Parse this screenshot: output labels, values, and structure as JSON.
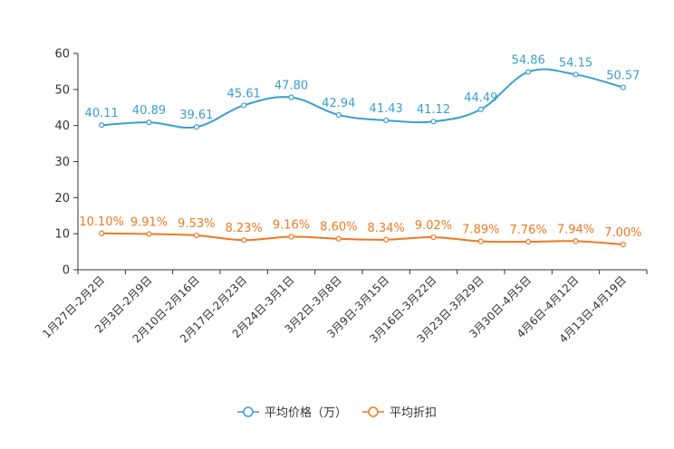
{
  "chart_data": {
    "type": "line",
    "categories": [
      "1月27日-2月2日",
      "2月3日-2月9日",
      "2月10日-2月16日",
      "2月17日-2月23日",
      "2月24日-3月1日",
      "3月2日-3月8日",
      "3月9日-3月15日",
      "3月16日-3月22日",
      "3月23日-3月29日",
      "3月30日-4月5日",
      "4月6日-4月12日",
      "4月13日-4月19日"
    ],
    "ylim": [
      0,
      60
    ],
    "yticks": [
      "0",
      "10",
      "20",
      "30",
      "40",
      "50",
      "60"
    ],
    "smooth": true,
    "series": [
      {
        "name": "平均价格（万）",
        "color": "#3a9fd0",
        "values": [
          40.11,
          40.89,
          39.61,
          45.61,
          47.8,
          42.94,
          41.43,
          41.12,
          44.49,
          54.86,
          54.15,
          50.57
        ],
        "labels": [
          "40.11",
          "40.89",
          "39.61",
          "45.61",
          "47.80",
          "42.94",
          "41.43",
          "41.12",
          "44.49",
          "54.86",
          "54.15",
          "50.57"
        ]
      },
      {
        "name": "平均折扣",
        "color": "#f0781e",
        "values": [
          10.1,
          9.91,
          9.53,
          8.23,
          9.16,
          8.6,
          8.34,
          9.02,
          7.89,
          7.76,
          7.94,
          7.0
        ],
        "labels": [
          "10.10%",
          "9.91%",
          "9.53%",
          "8.23%",
          "9.16%",
          "8.60%",
          "8.34%",
          "9.02%",
          "7.89%",
          "7.76%",
          "7.94%",
          "7.00%"
        ]
      }
    ],
    "legend_position": "bottom-center"
  }
}
